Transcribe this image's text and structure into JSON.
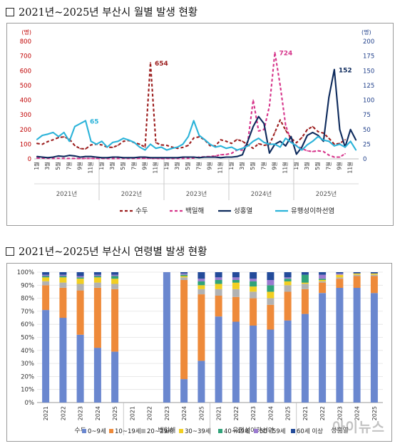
{
  "headings": {
    "monthly": "2021년~2025년 부산시 월별 발생 현황",
    "age": "2021년~2025년 부산시 연령별 발생 현황"
  },
  "watermark": "아이뉴스",
  "colors": {
    "measles": "#9b1c1c",
    "whooping": "#d6348a",
    "scrub": "#0d2a5c",
    "flu": "#2bb3d9",
    "age_0_9": "#6a87cf",
    "age_10_19": "#ee8a3a",
    "age_20_29": "#b2b2b2",
    "age_30_39": "#f2cf22",
    "age_40_49": "#31a37a",
    "age_50_59": "#9b7bd0",
    "age_60": "#234b9a"
  },
  "chart_data": [
    {
      "type": "line",
      "left_axis_unit": "(명)",
      "right_axis_unit": "(명)",
      "ylim_left": [
        0,
        800
      ],
      "ylim_right": [
        0,
        200
      ],
      "y_ticks_left": [
        "0",
        "100",
        "200",
        "300",
        "400",
        "500",
        "600",
        "700",
        "800"
      ],
      "y_ticks_right": [
        "0",
        "25",
        "50",
        "75",
        "100",
        "125",
        "150",
        "175",
        "200"
      ],
      "month_ticks": [
        "1월",
        "3월",
        "5월",
        "7월",
        "9월",
        "11월"
      ],
      "year_labels": [
        "2021년",
        "2022년",
        "2023년",
        "2024년",
        "2025년"
      ],
      "legend_position": "bottom",
      "annotations": [
        {
          "text": "654",
          "series": "수두"
        },
        {
          "text": "724",
          "series": "백일해"
        },
        {
          "text": "152",
          "series": "성홍열"
        },
        {
          "text": "65",
          "series": "유행성이하선염"
        }
      ],
      "series": [
        {
          "name": "수두",
          "axis": "left",
          "style": "dashed",
          "values": [
            105,
            100,
            118,
            130,
            145,
            150,
            135,
            90,
            70,
            68,
            95,
            100,
            95,
            80,
            78,
            92,
            120,
            125,
            110,
            100,
            80,
            654,
            110,
            95,
            92,
            80,
            72,
            78,
            92,
            142,
            150,
            130,
            90,
            88,
            130,
            120,
            105,
            132,
            120,
            96,
            72,
            104,
            92,
            98,
            180,
            265,
            195,
            140,
            110,
            145,
            200,
            220,
            185,
            175,
            140,
            100,
            105,
            130
          ]
        },
        {
          "name": "백일해",
          "axis": "left",
          "style": "dashed",
          "values": [
            6,
            5,
            4,
            3,
            4,
            3,
            3,
            3,
            2,
            3,
            3,
            3,
            3,
            2,
            2,
            3,
            3,
            3,
            3,
            4,
            4,
            3,
            3,
            2,
            3,
            2,
            3,
            3,
            4,
            6,
            12,
            14,
            16,
            20,
            28,
            30,
            38,
            60,
            60,
            115,
            400,
            190,
            200,
            360,
            724,
            500,
            230,
            120,
            90,
            70,
            55,
            50,
            55,
            50,
            25,
            12,
            12,
            35
          ]
        },
        {
          "name": "성홍열",
          "axis": "right",
          "style": "solid",
          "values": [
            4,
            3,
            2,
            3,
            5,
            4,
            6,
            5,
            3,
            4,
            4,
            3,
            2,
            2,
            3,
            3,
            2,
            2,
            2,
            3,
            3,
            2,
            2,
            2,
            2,
            2,
            2,
            3,
            3,
            3,
            2,
            3,
            3,
            3,
            2,
            3,
            3,
            4,
            7,
            30,
            55,
            72,
            60,
            10,
            25,
            30,
            22,
            38,
            8,
            20,
            40,
            45,
            40,
            30,
            105,
            152,
            50,
            20,
            50,
            32,
            25,
            55
          ]
        },
        {
          "name": "유행성이하선염",
          "axis": "right",
          "style": "solid",
          "values": [
            33,
            40,
            42,
            45,
            38,
            45,
            30,
            55,
            60,
            65,
            30,
            25,
            30,
            20,
            28,
            30,
            35,
            32,
            28,
            20,
            15,
            25,
            18,
            20,
            15,
            18,
            20,
            25,
            38,
            65,
            40,
            33,
            25,
            20,
            22,
            18,
            20,
            15,
            18,
            22,
            30,
            35,
            28,
            25,
            25,
            20,
            35,
            28,
            22,
            15,
            24,
            30,
            38,
            32,
            30,
            22,
            25,
            20,
            30,
            15
          ]
        }
      ]
    },
    {
      "type": "bar",
      "stacked": "percent",
      "ylim": [
        0,
        100
      ],
      "y_ticks": [
        "0%",
        "10%",
        "20%",
        "30%",
        "40%",
        "50%",
        "60%",
        "70%",
        "80%",
        "90%",
        "100%"
      ],
      "legend_position": "bottom",
      "groups": [
        {
          "name": "수두",
          "years": [
            "2021",
            "2022",
            "2023",
            "2024",
            "2025"
          ]
        },
        {
          "name": "백일해",
          "years": [
            "2021",
            "2022",
            "2023",
            "2024",
            "2025"
          ]
        },
        {
          "name": "유행성이하선염",
          "years": [
            "2021",
            "2022",
            "2023",
            "2024",
            "2025"
          ]
        },
        {
          "name": "성홍열",
          "years": [
            "2021",
            "2022",
            "2023",
            "2024",
            "2025"
          ]
        }
      ],
      "series_names": [
        "0~9세",
        "10~19세",
        "20~29세",
        "30~39세",
        "40~49세",
        "50~59세",
        "60세 이상"
      ],
      "bars": [
        [
          71,
          19,
          3,
          3,
          1,
          1,
          2
        ],
        [
          65,
          23,
          4,
          4,
          1,
          1,
          2
        ],
        [
          52,
          34,
          5,
          4,
          1,
          1,
          3
        ],
        [
          42,
          46,
          4,
          4,
          1,
          1,
          2
        ],
        [
          39,
          48,
          4,
          4,
          2,
          1,
          2
        ],
        [
          0,
          0,
          0,
          0,
          0,
          0,
          0
        ],
        [
          0,
          0,
          0,
          0,
          0,
          0,
          0
        ],
        [
          100,
          0,
          0,
          0,
          0,
          0,
          0
        ],
        [
          18,
          76,
          2,
          1,
          1,
          1,
          1
        ],
        [
          32,
          51,
          4,
          3,
          3,
          2,
          5
        ],
        [
          66,
          16,
          5,
          4,
          3,
          2,
          4
        ],
        [
          62,
          19,
          6,
          5,
          2,
          2,
          4
        ],
        [
          59,
          21,
          5,
          4,
          4,
          2,
          5
        ],
        [
          56,
          19,
          5,
          5,
          5,
          4,
          6
        ],
        [
          63,
          22,
          5,
          3,
          2,
          1,
          4
        ],
        [
          68,
          19,
          4,
          1,
          6,
          0,
          2
        ],
        [
          84,
          8,
          1,
          1,
          1,
          3,
          2
        ],
        [
          88,
          7,
          1,
          2,
          0,
          1,
          1
        ],
        [
          88,
          9,
          1,
          1,
          0,
          0,
          1
        ],
        [
          84,
          13,
          1,
          1,
          0,
          0,
          1
        ]
      ]
    }
  ]
}
